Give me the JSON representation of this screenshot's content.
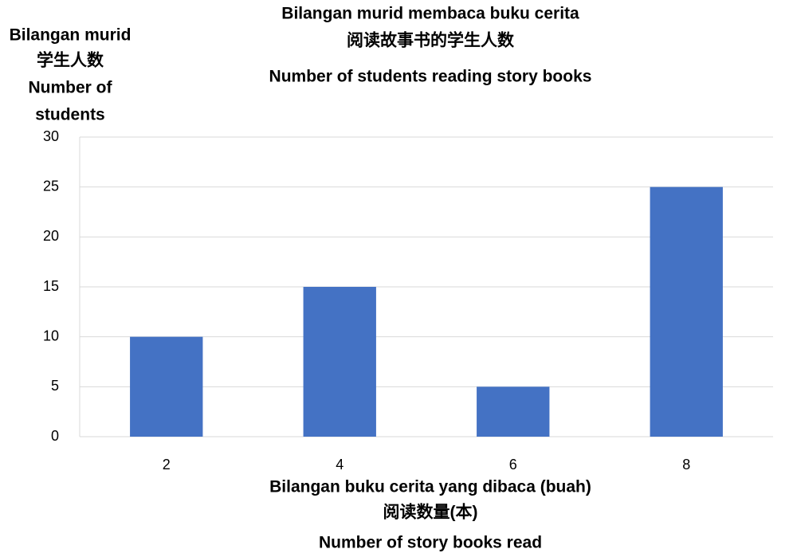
{
  "chart_data": {
    "type": "bar",
    "title": [
      "Bilangan murid membaca buku cerita",
      "阅读故事书的学生人数",
      "Number of students reading story books"
    ],
    "y_label": [
      "Bilangan murid",
      "学生人数",
      "Number of",
      "students"
    ],
    "x_label": [
      "Bilangan buku cerita yang dibaca (buah)",
      "阅读数量(本)",
      "Number of story books read"
    ],
    "categories": [
      "2",
      "4",
      "6",
      "8"
    ],
    "values": [
      10,
      15,
      5,
      25
    ],
    "color": "#4472c4",
    "ylim": [
      0,
      30
    ],
    "yticks": [
      0,
      5,
      10,
      15,
      20,
      25,
      30
    ],
    "grid": true
  }
}
